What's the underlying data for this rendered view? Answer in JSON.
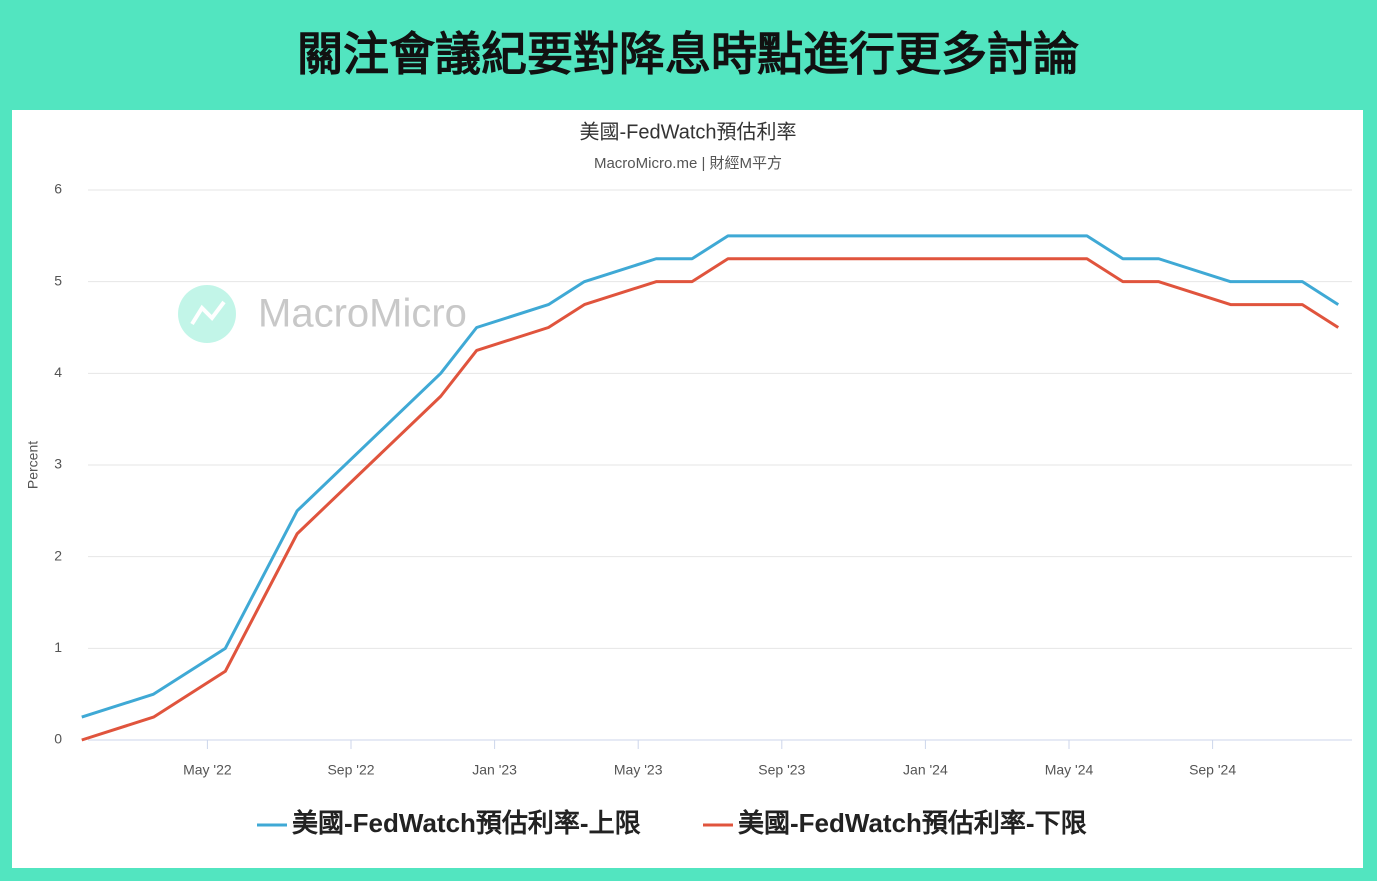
{
  "header": {
    "title": "關注會議紀要對降息時點進行更多討論"
  },
  "chart_data": {
    "type": "line",
    "title": "美國-FedWatch預估利率",
    "subtitle": "MacroMicro.me | 財經M平方",
    "watermark": "MacroMicro",
    "y_label": "Percent",
    "x": [
      "2022-01",
      "2022-03",
      "2022-05",
      "2022-06",
      "2022-07",
      "2022-09",
      "2022-11",
      "2022-12",
      "2023-02",
      "2023-03",
      "2023-05",
      "2023-06",
      "2023-07",
      "2023-09",
      "2023-11",
      "2023-12",
      "2024-01",
      "2024-03",
      "2024-05",
      "2024-06",
      "2024-07",
      "2024-09",
      "2024-11",
      "2024-12"
    ],
    "series": [
      {
        "name": "美國-FedWatch預估利率-上限",
        "color": "#3fa9d5",
        "values": [
          0.25,
          0.5,
          1.0,
          1.75,
          2.5,
          3.25,
          4.0,
          4.5,
          4.75,
          5.0,
          5.25,
          5.25,
          5.5,
          5.5,
          5.5,
          5.5,
          5.5,
          5.5,
          5.5,
          5.25,
          5.25,
          5.0,
          5.0,
          4.75
        ]
      },
      {
        "name": "美國-FedWatch預估利率-下限",
        "color": "#e0543d",
        "values": [
          0,
          0.25,
          0.75,
          1.5,
          2.25,
          3.0,
          3.75,
          4.25,
          4.5,
          4.75,
          5.0,
          5.0,
          5.25,
          5.25,
          5.25,
          5.25,
          5.25,
          5.25,
          5.25,
          5.0,
          5.0,
          4.75,
          4.75,
          4.5
        ]
      }
    ],
    "xlim": [
      "2022-01",
      "2024-12"
    ],
    "xticks": [
      {
        "value": "2022-05",
        "label": "May '22"
      },
      {
        "value": "2022-09",
        "label": "Sep '22"
      },
      {
        "value": "2023-01",
        "label": "Jan '23"
      },
      {
        "value": "2023-05",
        "label": "May '23"
      },
      {
        "value": "2023-09",
        "label": "Sep '23"
      },
      {
        "value": "2024-01",
        "label": "Jan '24"
      },
      {
        "value": "2024-05",
        "label": "May '24"
      },
      {
        "value": "2024-09",
        "label": "Sep '24"
      }
    ],
    "ylim": [
      0,
      6
    ],
    "yticks": [
      0,
      1,
      2,
      3,
      4,
      5,
      6
    ],
    "grid": true,
    "legend": "bottom"
  }
}
